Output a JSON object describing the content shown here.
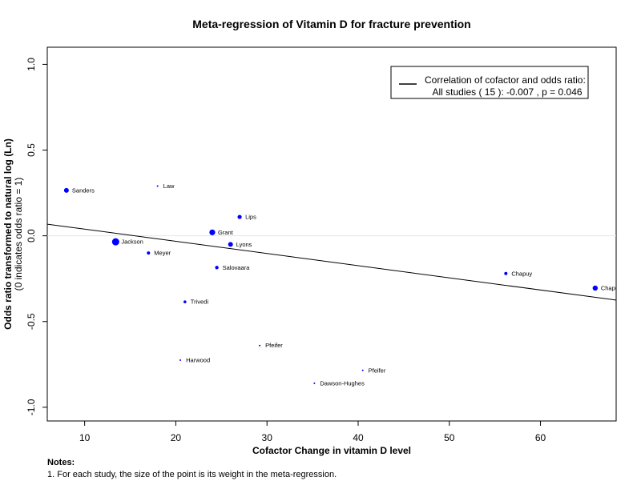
{
  "chart_data": {
    "type": "scatter",
    "title": "Meta-regression of  Vitamin D for fracture prevention",
    "xlabel": "Cofactor Change in vitamin D level",
    "ylabel": "Odds ratio transformed to natural log (Ln)",
    "ylabel_sub": "(0 indicates odds ratio = 1)",
    "xlim": [
      5.9,
      68.3
    ],
    "ylim": [
      -1.08,
      1.1
    ],
    "x_ticks": [
      10,
      20,
      30,
      40,
      50,
      60
    ],
    "x_tick_labels": [
      "10",
      "20",
      "30",
      "40",
      "50",
      "60"
    ],
    "y_ticks": [
      1.0,
      0.5,
      0.0,
      -0.5,
      -1.0
    ],
    "y_tick_labels": [
      "1.0",
      "0.5",
      "0.0",
      "-0.5",
      "-1.0"
    ],
    "reference_line_y": 0,
    "regression_line": {
      "x": [
        5.9,
        68.3
      ],
      "y": [
        0.068,
        -0.375
      ]
    },
    "points": [
      {
        "label": "Sanders",
        "x": 8.0,
        "y": 0.265,
        "size": 3.0
      },
      {
        "label": "Law",
        "x": 18.0,
        "y": 0.29,
        "size": 1.0
      },
      {
        "label": "Lips",
        "x": 27.0,
        "y": 0.11,
        "size": 2.6
      },
      {
        "label": "Grant",
        "x": 24.0,
        "y": 0.02,
        "size": 3.6
      },
      {
        "label": "Jackson",
        "x": 13.4,
        "y": -0.035,
        "size": 4.5
      },
      {
        "label": "Lyons",
        "x": 26.0,
        "y": -0.05,
        "size": 3.0
      },
      {
        "label": "Meyer",
        "x": 17.0,
        "y": -0.1,
        "size": 2.0
      },
      {
        "label": "Salovaara",
        "x": 24.5,
        "y": -0.185,
        "size": 2.2
      },
      {
        "label": "Chapuy",
        "x": 56.2,
        "y": -0.22,
        "size": 2.0
      },
      {
        "label": "Chapuy",
        "x": 66.0,
        "y": -0.305,
        "size": 3.2
      },
      {
        "label": "Trivedi",
        "x": 21.0,
        "y": -0.385,
        "size": 1.8
      },
      {
        "label": "Pfeifer",
        "x": 29.2,
        "y": -0.64,
        "size": 1.0
      },
      {
        "label": "Harwood",
        "x": 20.5,
        "y": -0.725,
        "size": 1.0
      },
      {
        "label": "Pfeifer",
        "x": 40.5,
        "y": -0.785,
        "size": 1.0
      },
      {
        "label": "Dawson-Hughes",
        "x": 35.2,
        "y": -0.86,
        "size": 1.0
      }
    ],
    "legend": {
      "position": "top-right",
      "line1": "Correlation of cofactor and odds ratio:",
      "line2": "All studies ( 15 ): -0.007 , p = 0.046"
    },
    "point_color": "#0000ff",
    "line_color": "#000000",
    "grid": false
  },
  "notes": {
    "heading": "Notes:",
    "line1": "1. For each study, the size of the point is its weight in the meta-regression."
  }
}
